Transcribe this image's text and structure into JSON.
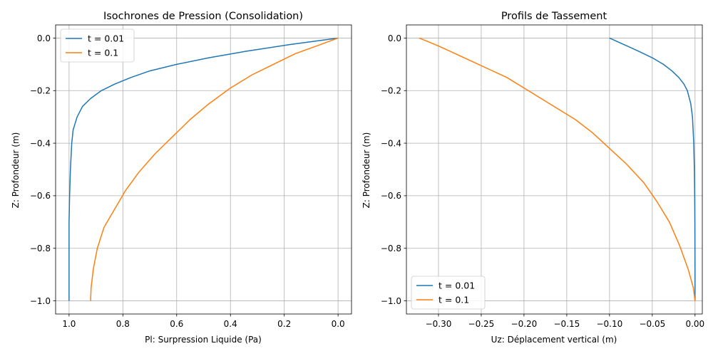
{
  "chart_data": [
    {
      "type": "line",
      "title": "Isochrones de Pression (Consolidation)",
      "xlabel": "Pl: Surpression Liquide (Pa)",
      "ylabel": "Z: Profondeur (m)",
      "xlim": [
        1.05,
        -0.05
      ],
      "ylim": [
        -1.05,
        0.05
      ],
      "xticks": [
        1.0,
        0.8,
        0.6,
        0.4,
        0.2,
        0.0
      ],
      "xtick_labels": [
        "1.0",
        "0.8",
        "0.6",
        "0.4",
        "0.2",
        "0.0"
      ],
      "yticks": [
        0.0,
        -0.2,
        -0.4,
        -0.6,
        -0.8,
        -1.0
      ],
      "ytick_labels": [
        "0.0",
        "−0.2",
        "−0.4",
        "−0.6",
        "−0.8",
        "−1.0"
      ],
      "grid": true,
      "legend_position": "top-left",
      "series": [
        {
          "name": "t = 0.01",
          "color": "#1f77b4",
          "points": [
            [
              0.0,
              0.0
            ],
            [
              0.18,
              -0.025
            ],
            [
              0.34,
              -0.05
            ],
            [
              0.48,
              -0.075
            ],
            [
              0.6,
              -0.1
            ],
            [
              0.7,
              -0.125
            ],
            [
              0.77,
              -0.15
            ],
            [
              0.83,
              -0.175
            ],
            [
              0.88,
              -0.2
            ],
            [
              0.92,
              -0.23
            ],
            [
              0.95,
              -0.26
            ],
            [
              0.97,
              -0.3
            ],
            [
              0.985,
              -0.35
            ],
            [
              0.99,
              -0.4
            ],
            [
              0.995,
              -0.5
            ],
            [
              0.998,
              -0.6
            ],
            [
              1.0,
              -0.7
            ],
            [
              1.0,
              -0.8
            ],
            [
              1.0,
              -0.9
            ],
            [
              1.0,
              -1.0
            ]
          ]
        },
        {
          "name": "t = 0.1",
          "color": "#ff7f0e",
          "points": [
            [
              0.0,
              0.0
            ],
            [
              0.08,
              -0.03
            ],
            [
              0.16,
              -0.06
            ],
            [
              0.24,
              -0.1
            ],
            [
              0.32,
              -0.14
            ],
            [
              0.4,
              -0.19
            ],
            [
              0.48,
              -0.25
            ],
            [
              0.55,
              -0.31
            ],
            [
              0.62,
              -0.38
            ],
            [
              0.68,
              -0.44
            ],
            [
              0.74,
              -0.51
            ],
            [
              0.79,
              -0.58
            ],
            [
              0.83,
              -0.65
            ],
            [
              0.87,
              -0.72
            ],
            [
              0.895,
              -0.8
            ],
            [
              0.91,
              -0.88
            ],
            [
              0.918,
              -0.95
            ],
            [
              0.92,
              -1.0
            ]
          ]
        }
      ]
    },
    {
      "type": "line",
      "title": "Profils de Tassement",
      "xlabel": "Uz: Déplacement vertical (m)",
      "ylabel": "Z: Profondeur (m)",
      "xlim": [
        -0.3375,
        0.0085
      ],
      "ylim": [
        -1.05,
        0.05
      ],
      "xticks": [
        -0.3,
        -0.25,
        -0.2,
        -0.15,
        -0.1,
        -0.05,
        0.0
      ],
      "xtick_labels": [
        "−0.30",
        "−0.25",
        "−0.20",
        "−0.15",
        "−0.10",
        "−0.05",
        "0.00"
      ],
      "yticks": [
        0.0,
        -0.2,
        -0.4,
        -0.6,
        -0.8,
        -1.0
      ],
      "ytick_labels": [
        "0.0",
        "−0.2",
        "−0.4",
        "−0.6",
        "−0.8",
        "−1.0"
      ],
      "grid": true,
      "legend_position": "bottom-left",
      "series": [
        {
          "name": "t = 0.01",
          "color": "#1f77b4",
          "points": [
            [
              -0.1,
              0.0
            ],
            [
              -0.083,
              -0.025
            ],
            [
              -0.066,
              -0.05
            ],
            [
              -0.05,
              -0.075
            ],
            [
              -0.037,
              -0.1
            ],
            [
              -0.027,
              -0.125
            ],
            [
              -0.019,
              -0.15
            ],
            [
              -0.013,
              -0.175
            ],
            [
              -0.009,
              -0.2
            ],
            [
              -0.005,
              -0.25
            ],
            [
              -0.003,
              -0.3
            ],
            [
              -0.0015,
              -0.4
            ],
            [
              -0.0008,
              -0.5
            ],
            [
              -0.0004,
              -0.6
            ],
            [
              -0.0002,
              -0.7
            ],
            [
              -0.0001,
              -0.8
            ],
            [
              0.0,
              -0.9
            ],
            [
              0.0,
              -1.0
            ]
          ]
        },
        {
          "name": "t = 0.1",
          "color": "#ff7f0e",
          "points": [
            [
              -0.3225,
              0.0
            ],
            [
              -0.3,
              -0.03
            ],
            [
              -0.28,
              -0.06
            ],
            [
              -0.26,
              -0.09
            ],
            [
              -0.24,
              -0.12
            ],
            [
              -0.22,
              -0.15
            ],
            [
              -0.2,
              -0.19
            ],
            [
              -0.18,
              -0.23
            ],
            [
              -0.16,
              -0.27
            ],
            [
              -0.14,
              -0.31
            ],
            [
              -0.12,
              -0.36
            ],
            [
              -0.1,
              -0.42
            ],
            [
              -0.08,
              -0.48
            ],
            [
              -0.06,
              -0.55
            ],
            [
              -0.045,
              -0.62
            ],
            [
              -0.03,
              -0.7
            ],
            [
              -0.018,
              -0.79
            ],
            [
              -0.008,
              -0.88
            ],
            [
              -0.002,
              -0.95
            ],
            [
              0.0,
              -1.0
            ]
          ]
        }
      ]
    }
  ]
}
